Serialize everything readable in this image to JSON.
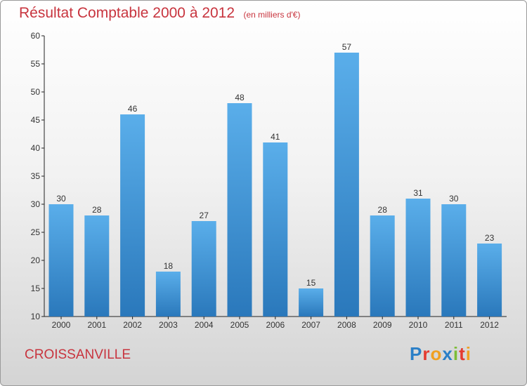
{
  "title": "Résultat Comptable 2000 à 2012",
  "subtitle": "(en milliers d'€)",
  "city": "CROISSANVILLE",
  "logo_text": "Proxiti",
  "colors": {
    "title": "#c8343e",
    "bar_top": "#5aaeea",
    "bar_bottom": "#2a78bb"
  },
  "chart_data": {
    "type": "bar",
    "title": "Résultat Comptable 2000 à 2012",
    "subtitle": "(en milliers d'€)",
    "xlabel": "",
    "ylabel": "",
    "categories": [
      "2000",
      "2001",
      "2002",
      "2003",
      "2004",
      "2005",
      "2006",
      "2007",
      "2008",
      "2009",
      "2010",
      "2011",
      "2012"
    ],
    "values": [
      30,
      28,
      46,
      18,
      27,
      48,
      41,
      15,
      57,
      28,
      31,
      30,
      23
    ],
    "ylim": [
      10,
      60
    ],
    "yticks": [
      10,
      15,
      20,
      25,
      30,
      35,
      40,
      45,
      50,
      55,
      60
    ],
    "grid": false,
    "data_labels": true
  }
}
